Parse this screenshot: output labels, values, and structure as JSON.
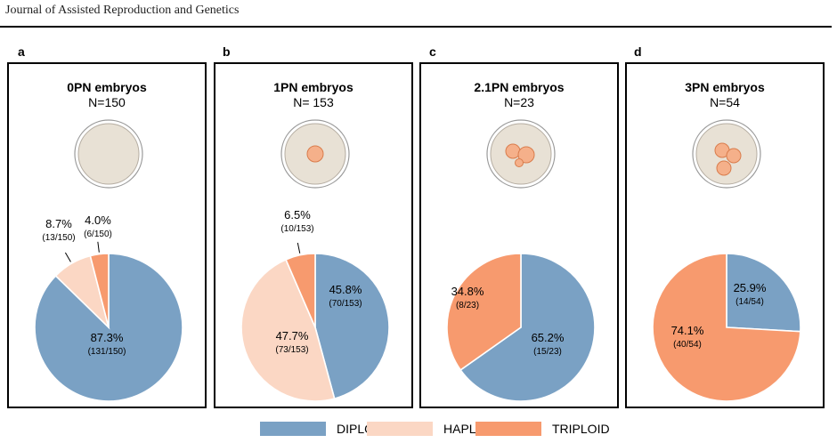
{
  "journal": "Journal of Assisted Reproduction and Genetics",
  "colors": {
    "diploid": "#7AA1C4",
    "haploid": "#FBD7C4",
    "triploid": "#F79A6E",
    "embryo": "#E8E1D5",
    "pronucleus": "#F5B08A"
  },
  "legend": [
    {
      "label": "DIPLOID",
      "color": "#7AA1C4"
    },
    {
      "label": "HAPLOID",
      "color": "#FBD7C4"
    },
    {
      "label": "TRIPLOID",
      "color": "#F79A6E"
    }
  ],
  "panels": [
    {
      "letter": "a",
      "title": "0PN embryos",
      "n": "N=150"
    },
    {
      "letter": "b",
      "title": "1PN embryos",
      "n": "N= 153"
    },
    {
      "letter": "c",
      "title": "2.1PN embryos",
      "n": "N=23"
    },
    {
      "letter": "d",
      "title": "3PN embryos",
      "n": "N=54"
    }
  ],
  "chart_data": [
    {
      "type": "pie",
      "title": "0PN embryos",
      "n": "N=150",
      "slices": [
        {
          "name": "DIPLOID",
          "value": 87.3,
          "label": "87.3%",
          "count": "(131/150)"
        },
        {
          "name": "HAPLOID",
          "value": 8.7,
          "label": "8.7%",
          "count": "(13/150)"
        },
        {
          "name": "TRIPLOID",
          "value": 4.0,
          "label": "4.0%",
          "count": "(6/150)"
        }
      ]
    },
    {
      "type": "pie",
      "title": "1PN embryos",
      "n": "N= 153",
      "slices": [
        {
          "name": "DIPLOID",
          "value": 45.8,
          "label": "45.8%",
          "count": "(70/153)"
        },
        {
          "name": "HAPLOID",
          "value": 47.7,
          "label": "47.7%",
          "count": "(73/153)"
        },
        {
          "name": "TRIPLOID",
          "value": 6.5,
          "label": "6.5%",
          "count": "(10/153)"
        }
      ]
    },
    {
      "type": "pie",
      "title": "2.1PN embryos",
      "n": "N=23",
      "slices": [
        {
          "name": "DIPLOID",
          "value": 65.2,
          "label": "65.2%",
          "count": "(15/23)"
        },
        {
          "name": "TRIPLOID",
          "value": 34.8,
          "label": "34.8%",
          "count": "(8/23)"
        }
      ]
    },
    {
      "type": "pie",
      "title": "3PN embryos",
      "n": "N=54",
      "slices": [
        {
          "name": "DIPLOID",
          "value": 25.9,
          "label": "25.9%",
          "count": "(14/54)"
        },
        {
          "name": "TRIPLOID",
          "value": 74.1,
          "label": "74.1%",
          "count": "(40/54)"
        }
      ]
    }
  ]
}
